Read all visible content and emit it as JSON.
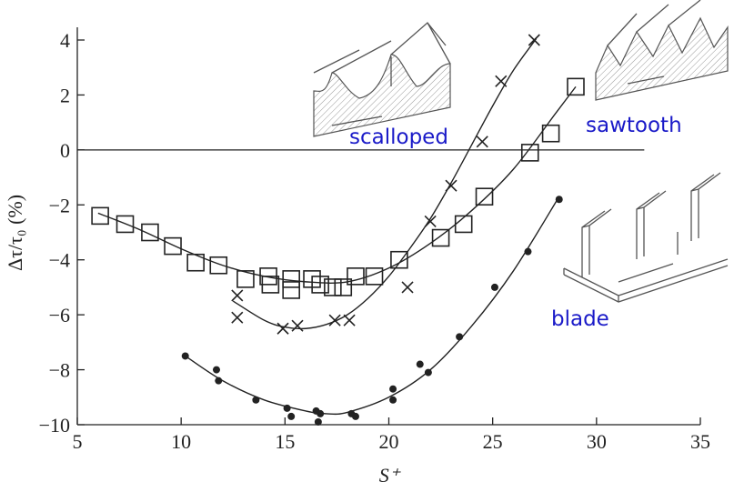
{
  "chart_data": {
    "type": "scatter",
    "x_label": "S⁺",
    "y_label": "Δτ/τ₀ (%)",
    "xlim": [
      5,
      35
    ],
    "ylim": [
      -10,
      4
    ],
    "xticks": [
      5,
      10,
      15,
      20,
      25,
      30,
      35
    ],
    "yticks": [
      {
        "value": -10,
        "label": "−10"
      },
      {
        "value": -8,
        "label": "−8"
      },
      {
        "value": -6,
        "label": "−6"
      },
      {
        "value": -4,
        "label": "−4"
      },
      {
        "value": -2,
        "label": "−2"
      },
      0,
      2,
      4
    ],
    "hline": {
      "y": 0,
      "xmax": 32.3
    },
    "label_color": "#1a1ac8",
    "series": [
      {
        "name": "scalloped",
        "marker": "cross",
        "color": "#222222",
        "x": [
          12.7,
          12.7,
          14.9,
          15.6,
          17.4,
          18.1,
          20.9,
          22.0,
          23.0,
          24.5,
          25.4,
          27.0
        ],
        "values": [
          -5.3,
          -6.1,
          -6.5,
          -6.4,
          -6.2,
          -6.2,
          -5.0,
          -2.6,
          -1.3,
          0.3,
          2.5,
          4.0
        ],
        "fit_x": [
          12.5,
          14,
          15,
          16,
          17,
          18,
          19,
          20,
          21,
          22,
          23,
          24,
          25,
          26,
          27.1
        ],
        "fit": [
          -5.5,
          -6.2,
          -6.45,
          -6.5,
          -6.35,
          -6.0,
          -5.4,
          -4.6,
          -3.6,
          -2.5,
          -1.2,
          0.2,
          1.6,
          2.9,
          4.05
        ]
      },
      {
        "name": "sawtooth",
        "marker": "square",
        "color": "#222222",
        "x": [
          6.1,
          7.3,
          8.5,
          9.6,
          10.7,
          11.8,
          13.1,
          14.2,
          14.3,
          15.3,
          15.3,
          16.3,
          16.7,
          17.3,
          17.8,
          18.4,
          19.3,
          20.5,
          22.5,
          23.6,
          24.6,
          26.8,
          27.8,
          29.0
        ],
        "values": [
          -2.4,
          -2.7,
          -3.0,
          -3.5,
          -4.1,
          -4.2,
          -4.7,
          -4.6,
          -4.9,
          -4.7,
          -5.1,
          -4.7,
          -4.9,
          -5.0,
          -5.0,
          -4.6,
          -4.6,
          -4.0,
          -3.2,
          -2.7,
          -1.7,
          -0.1,
          0.6,
          2.3
        ],
        "fit_x": [
          6,
          8,
          10,
          12,
          14,
          16,
          18,
          20,
          22,
          24,
          26,
          28,
          29
        ],
        "fit": [
          -2.3,
          -2.9,
          -3.6,
          -4.2,
          -4.6,
          -4.8,
          -4.8,
          -4.3,
          -3.4,
          -2.2,
          -0.7,
          1.3,
          2.3
        ]
      },
      {
        "name": "blade",
        "marker": "dot",
        "color": "#222222",
        "x": [
          10.2,
          11.7,
          11.8,
          13.6,
          15.1,
          15.3,
          16.5,
          16.7,
          16.6,
          18.2,
          18.4,
          20.2,
          20.2,
          21.5,
          21.9,
          23.4,
          25.1,
          26.7,
          28.2
        ],
        "values": [
          -7.5,
          -8.0,
          -8.4,
          -9.1,
          -9.4,
          -9.7,
          -9.5,
          -9.6,
          -9.9,
          -9.6,
          -9.7,
          -9.1,
          -8.7,
          -7.8,
          -8.1,
          -6.8,
          -5.0,
          -3.7,
          -1.8
        ],
        "fit_x": [
          10.2,
          12,
          14,
          16,
          17,
          18,
          20,
          22,
          24,
          26,
          28.2
        ],
        "fit": [
          -7.5,
          -8.4,
          -9.1,
          -9.5,
          -9.6,
          -9.55,
          -9.0,
          -8.0,
          -6.4,
          -4.4,
          -1.7
        ]
      }
    ]
  }
}
